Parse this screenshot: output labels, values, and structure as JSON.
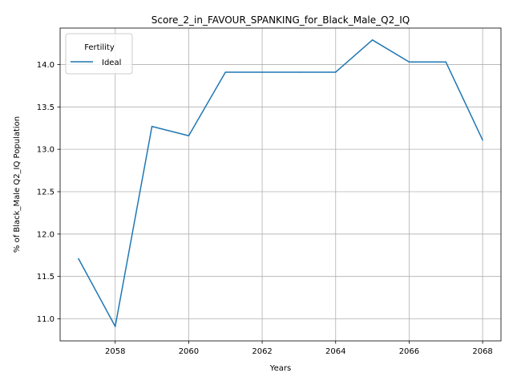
{
  "chart_data": {
    "type": "line",
    "title": "Score_2_in_FAVOUR_SPANKING_for_Black_Male_Q2_IQ",
    "xlabel": "Years",
    "ylabel": "% of Black_Male Q2_IQ Population",
    "xlim": [
      2056.5,
      2068.5
    ],
    "ylim": [
      10.74,
      14.43
    ],
    "x_ticks": [
      2058,
      2060,
      2062,
      2064,
      2066,
      2068
    ],
    "y_ticks": [
      11.0,
      11.5,
      12.0,
      12.5,
      13.0,
      13.5,
      14.0
    ],
    "grid": true,
    "legend": {
      "title": "Fertility",
      "placement": "top-left"
    },
    "series": [
      {
        "name": "Ideal",
        "color": "#1f77b4",
        "x": [
          2057,
          2058,
          2059,
          2060,
          2061,
          2062,
          2063,
          2064,
          2065,
          2066,
          2067,
          2068
        ],
        "y": [
          11.71,
          10.91,
          13.27,
          13.16,
          13.91,
          13.91,
          13.91,
          13.91,
          14.29,
          14.03,
          14.03,
          13.11
        ]
      }
    ]
  }
}
